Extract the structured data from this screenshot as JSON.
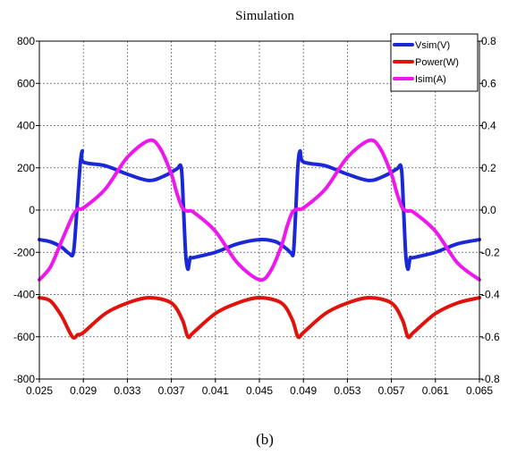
{
  "chart_data": {
    "type": "line",
    "title": "Simulation",
    "caption": "(b)",
    "xlabel": "",
    "ylabel": "",
    "xlim": [
      0.025,
      0.065
    ],
    "ylim_left": [
      -800,
      800
    ],
    "ylim_right": [
      -0.8,
      0.8
    ],
    "x_ticks": [
      "0.025",
      "0.029",
      "0.033",
      "0.037",
      "0.041",
      "0.045",
      "0.049",
      "0.053",
      "0.057",
      "0.061",
      "0.065"
    ],
    "y_ticks_left": [
      "800",
      "600",
      "400",
      "200",
      "0",
      "-200",
      "-400",
      "-600",
      "-800"
    ],
    "y_ticks_right": [
      "0.8",
      "0.6",
      "0.4",
      "0.2",
      "0.0",
      "-0.2",
      "-0.4",
      "-0.6",
      "-0.8"
    ],
    "grid": true,
    "legend_position": "top-right",
    "series": [
      {
        "name": "Vsim(V)",
        "color": "#1a28d8",
        "axis": "left",
        "x": [
          0.025,
          0.026,
          0.027,
          0.0277,
          0.0281,
          0.0284,
          0.0287,
          0.0289,
          0.029,
          0.031,
          0.033,
          0.035,
          0.0365,
          0.0375,
          0.0379,
          0.0381,
          0.0383,
          0.0385,
          0.0387,
          0.039,
          0.041,
          0.043,
          0.045,
          0.0465,
          0.0475,
          0.0479,
          0.0481,
          0.0483,
          0.0485,
          0.0487,
          0.049,
          0.051,
          0.053,
          0.055,
          0.0565,
          0.0575,
          0.0579,
          0.0581,
          0.0583,
          0.0585,
          0.0587,
          0.059,
          0.061,
          0.063,
          0.065
        ],
        "values": [
          -140,
          -150,
          -175,
          -205,
          -200,
          -10,
          210,
          280,
          228,
          210,
          170,
          140,
          165,
          195,
          200,
          10,
          -210,
          -280,
          -228,
          -225,
          -200,
          -160,
          -140,
          -150,
          -185,
          -205,
          -200,
          -10,
          210,
          280,
          228,
          210,
          170,
          140,
          165,
          195,
          200,
          10,
          -210,
          -280,
          -228,
          -225,
          -200,
          -160,
          -140
        ]
      },
      {
        "name": "Power(W)",
        "color": "#e0120c",
        "axis": "left",
        "x": [
          0.025,
          0.026,
          0.027,
          0.028,
          0.0285,
          0.029,
          0.031,
          0.033,
          0.035,
          0.037,
          0.038,
          0.0385,
          0.039,
          0.041,
          0.043,
          0.045,
          0.047,
          0.048,
          0.0485,
          0.049,
          0.051,
          0.053,
          0.055,
          0.057,
          0.058,
          0.0585,
          0.059,
          0.061,
          0.063,
          0.065
        ],
        "values": [
          -415,
          -430,
          -500,
          -600,
          -590,
          -580,
          -490,
          -440,
          -415,
          -440,
          -520,
          -600,
          -580,
          -490,
          -440,
          -415,
          -440,
          -520,
          -600,
          -580,
          -490,
          -440,
          -415,
          -440,
          -520,
          -600,
          -580,
          -490,
          -440,
          -415
        ]
      },
      {
        "name": "Isim(A)",
        "color": "#ee18ee",
        "axis": "right",
        "x": [
          0.025,
          0.026,
          0.027,
          0.028,
          0.0285,
          0.029,
          0.031,
          0.033,
          0.035,
          0.036,
          0.037,
          0.0375,
          0.038,
          0.0385,
          0.039,
          0.041,
          0.043,
          0.045,
          0.046,
          0.047,
          0.0475,
          0.048,
          0.0485,
          0.049,
          0.051,
          0.053,
          0.055,
          0.056,
          0.057,
          0.0575,
          0.058,
          0.0585,
          0.059,
          0.061,
          0.063,
          0.065
        ],
        "values": [
          -0.33,
          -0.27,
          -0.15,
          -0.03,
          0.005,
          0.01,
          0.1,
          0.25,
          0.33,
          0.29,
          0.17,
          0.08,
          0.01,
          -0.005,
          -0.01,
          -0.1,
          -0.25,
          -0.33,
          -0.29,
          -0.17,
          -0.08,
          -0.01,
          0.005,
          0.01,
          0.1,
          0.25,
          0.33,
          0.29,
          0.17,
          0.08,
          0.01,
          -0.005,
          -0.01,
          -0.1,
          -0.25,
          -0.33
        ]
      }
    ]
  }
}
